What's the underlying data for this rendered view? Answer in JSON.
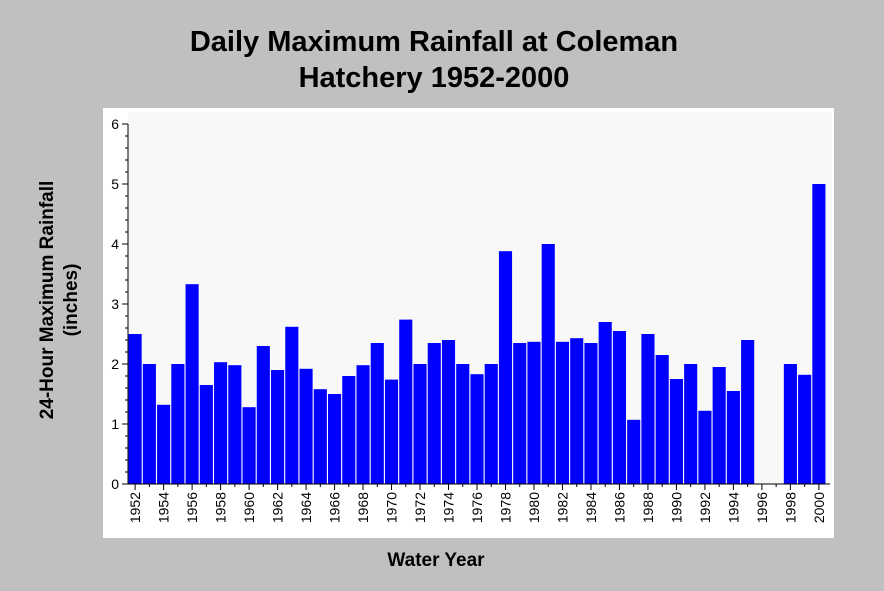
{
  "chart_data": {
    "type": "bar",
    "title_lines": [
      "Daily Maximum Rainfall at Coleman",
      "Hatchery 1952-2000"
    ],
    "xlabel": "Water Year",
    "ylabel_lines": [
      "24-Hour Maximum Rainfall",
      "(inches)"
    ],
    "ylim": [
      0,
      6
    ],
    "yticks": [
      0,
      1,
      2,
      3,
      4,
      5,
      6
    ],
    "x_tick_labels": [
      "1952",
      "1954",
      "1956",
      "1958",
      "1960",
      "1962",
      "1964",
      "1966",
      "1968",
      "1970",
      "1972",
      "1974",
      "1976",
      "1978",
      "1980",
      "1982",
      "1984",
      "1986",
      "1988",
      "1990",
      "1992",
      "1994",
      "1996",
      "1998",
      "2000"
    ],
    "categories": [
      1952,
      1953,
      1954,
      1955,
      1956,
      1957,
      1958,
      1959,
      1960,
      1961,
      1962,
      1963,
      1964,
      1965,
      1966,
      1967,
      1968,
      1969,
      1970,
      1971,
      1972,
      1973,
      1974,
      1975,
      1976,
      1977,
      1978,
      1979,
      1980,
      1981,
      1982,
      1983,
      1984,
      1985,
      1986,
      1987,
      1988,
      1989,
      1990,
      1991,
      1992,
      1993,
      1994,
      1995,
      1996,
      1997,
      1998,
      1999,
      2000
    ],
    "values": [
      2.5,
      2.0,
      1.32,
      2.0,
      3.33,
      1.65,
      2.03,
      1.98,
      1.28,
      2.3,
      1.9,
      2.62,
      1.92,
      1.58,
      1.5,
      1.8,
      1.98,
      2.35,
      1.74,
      2.74,
      2.0,
      2.35,
      2.4,
      2.0,
      1.83,
      2.0,
      3.88,
      2.35,
      2.37,
      4.0,
      2.37,
      2.43,
      2.35,
      2.7,
      2.55,
      1.07,
      2.5,
      2.15,
      1.75,
      2.0,
      1.22,
      1.95,
      1.55,
      2.4,
      0,
      0,
      2.0,
      1.82,
      5.0
    ],
    "grid": false,
    "legend": "none",
    "colors": {
      "bar": "#0000ff",
      "plot_bg": "#f8f8f8",
      "page_bg": "#c0c0c0",
      "frame_bg": "#ffffff"
    }
  }
}
